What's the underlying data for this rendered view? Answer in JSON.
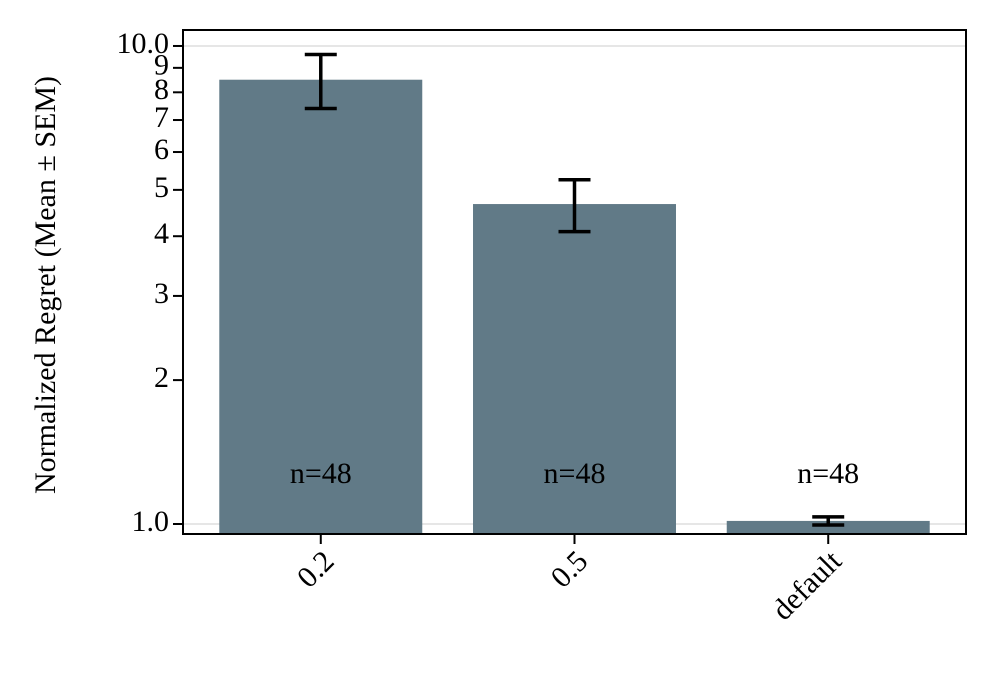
{
  "chart_data": {
    "type": "bar",
    "ylabel": "Normalized Regret (Mean ± SEM)",
    "categories": [
      "0.2",
      "0.5",
      "default"
    ],
    "values": [
      8.5,
      4.67,
      1.015
    ],
    "errors": [
      1.1,
      0.58,
      0.02
    ],
    "annotations": [
      "n=48",
      "n=48",
      "n=48"
    ],
    "color": "#617a87",
    "yscale": "log",
    "ylim": [
      0.953,
      10.8
    ],
    "yticks": [
      {
        "value": 1,
        "label": "1.0"
      },
      {
        "value": 10,
        "label": "10.0"
      }
    ],
    "yminorticks": [
      2,
      3,
      4,
      5,
      6,
      7,
      8,
      9
    ],
    "grid": true
  }
}
